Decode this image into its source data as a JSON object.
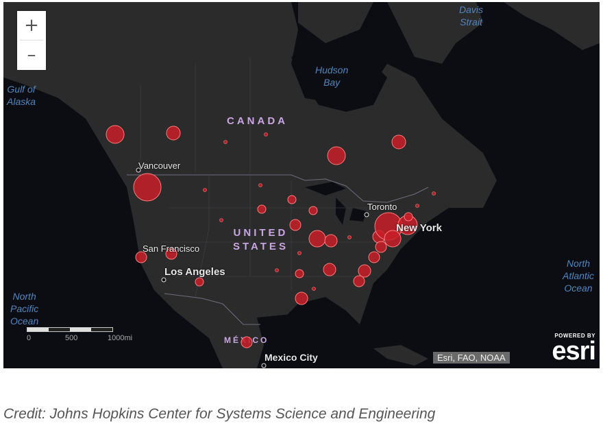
{
  "zoom": {
    "in_label": "+",
    "out_label": "–"
  },
  "water_labels": {
    "davis_strait": [
      "Davis",
      "Strait"
    ],
    "hudson_bay": [
      "Hudson",
      "Bay"
    ],
    "gulf_of_alaska": [
      "Gulf of",
      "Alaska"
    ],
    "north_pacific": [
      "North",
      "Pacific",
      "Ocean"
    ],
    "north_atlantic": [
      "North",
      "Atlantic",
      "Ocean"
    ]
  },
  "regions": {
    "canada": "CANADA",
    "united_states": [
      "UNITED",
      "STATES"
    ],
    "mexico": "MÉXICO"
  },
  "cities": {
    "vancouver": "Vancouver",
    "toronto": "Toronto",
    "new_york": "New York",
    "san_francisco": "San Francisco",
    "los_angeles": "Los Angeles",
    "mexico_city": "Mexico City"
  },
  "scale_bar": {
    "labels": [
      "0",
      "500",
      "1000mi"
    ]
  },
  "attribution": "Esri, FAO, NOAA",
  "esri_logo": {
    "powered_by": "POWERED BY",
    "brand": "esri"
  },
  "credit": "Credit:  Johns Hopkins Center for Systems Science and Engineering",
  "colors": {
    "marker_fill": "#c81e28",
    "marker_stroke": "#ff7a7a",
    "land": "#2b2b2b",
    "water": "#0b0d13"
  }
}
